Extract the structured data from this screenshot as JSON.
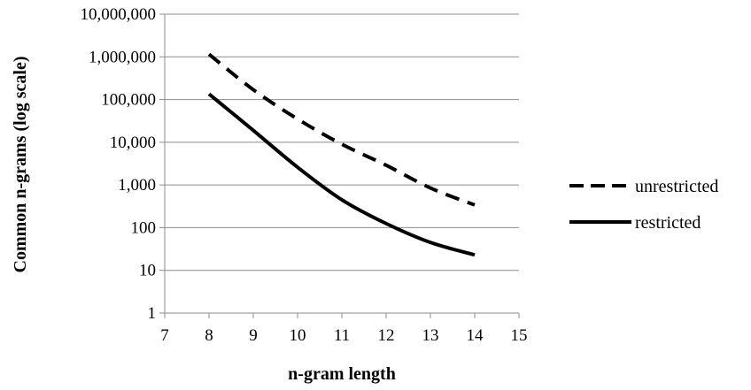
{
  "chart_data": {
    "type": "line",
    "title": "",
    "xlabel": "n-gram length",
    "ylabel": "Common n-grams (log scale)",
    "xlim": [
      7,
      15
    ],
    "ylim": [
      1,
      10000000
    ],
    "y_scale": "log",
    "x_ticks": [
      "7",
      "8",
      "9",
      "10",
      "11",
      "12",
      "13",
      "14",
      "15"
    ],
    "y_ticks": [
      "1",
      "10",
      "100",
      "1,000",
      "10,000",
      "100,000",
      "1,000,000",
      "10,000,000"
    ],
    "grid": "horizontal",
    "legend_position": "right",
    "series": [
      {
        "name": "unrestricted",
        "style": "dashed",
        "color": "#000000",
        "x": [
          8,
          9,
          10,
          11,
          12,
          13,
          14
        ],
        "y": [
          1150000,
          170000,
          35000,
          9000,
          2900,
          850,
          340
        ]
      },
      {
        "name": "restricted",
        "style": "solid",
        "color": "#000000",
        "x": [
          8,
          9,
          10,
          11,
          12,
          13,
          14
        ],
        "y": [
          135000,
          19000,
          2600,
          450,
          125,
          45,
          23
        ]
      }
    ]
  }
}
